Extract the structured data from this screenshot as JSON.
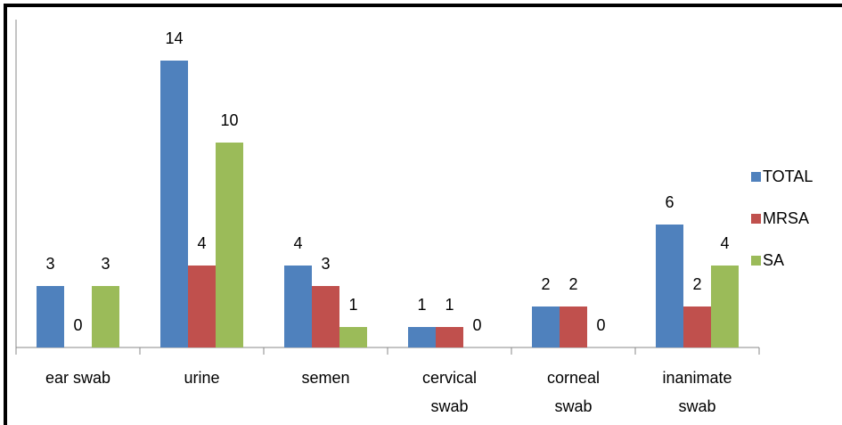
{
  "chart_data": {
    "type": "bar",
    "categories": [
      "ear swab",
      "urine",
      "semen",
      "cervical swab",
      "corneal swab",
      "inanimate swab"
    ],
    "series": [
      {
        "name": "TOTAL",
        "color": "#4f81bd",
        "values": [
          3,
          14,
          4,
          1,
          2,
          6
        ]
      },
      {
        "name": "MRSA",
        "color": "#c0504d",
        "values": [
          0,
          4,
          3,
          1,
          2,
          2
        ]
      },
      {
        "name": "SA",
        "color": "#9bbb59",
        "values": [
          3,
          10,
          1,
          0,
          0,
          4
        ]
      }
    ],
    "ylim": [
      0,
      16
    ],
    "legend": "right"
  }
}
